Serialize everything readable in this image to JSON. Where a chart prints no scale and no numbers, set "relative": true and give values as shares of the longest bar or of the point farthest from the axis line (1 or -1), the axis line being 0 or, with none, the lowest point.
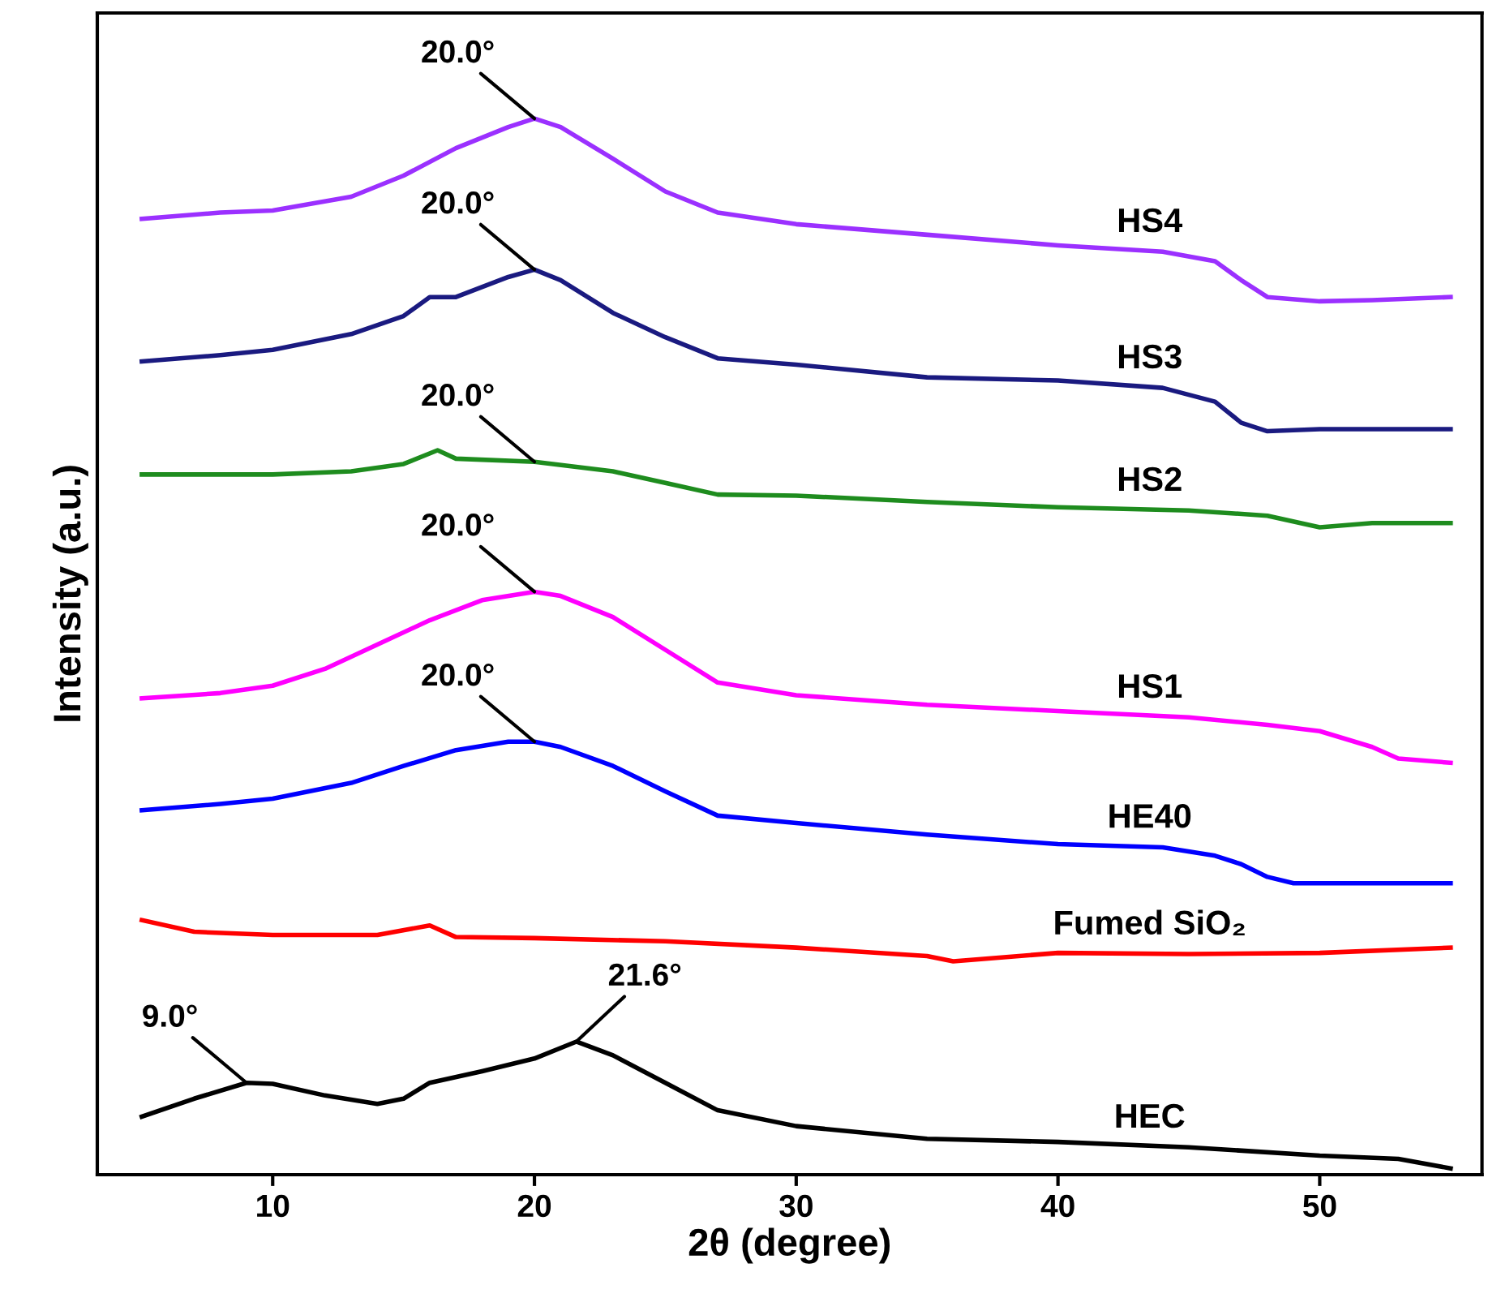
{
  "chart_data": {
    "type": "line",
    "relative": true,
    "xlabel": "2θ (degree)",
    "ylabel": "Intensity (a.u.)",
    "xlim": [
      3.3,
      56.2
    ],
    "xticks": [
      10,
      20,
      30,
      40,
      50
    ],
    "grid": false,
    "legend": false,
    "marker": "none",
    "line_style": "solid",
    "series": [
      {
        "name": "HS4",
        "color": "#9b30ff",
        "x": [
          5,
          8,
          10,
          13,
          15,
          17,
          19,
          20,
          21,
          23,
          25,
          27,
          30,
          35,
          40,
          44,
          46,
          47,
          48,
          50,
          52,
          55
        ],
        "values": [
          0.905,
          0.911,
          0.913,
          0.926,
          0.946,
          0.972,
          0.992,
          1.0,
          0.992,
          0.962,
          0.931,
          0.911,
          0.9,
          0.89,
          0.88,
          0.874,
          0.865,
          0.847,
          0.831,
          0.827,
          0.828,
          0.831
        ]
      },
      {
        "name": "HS3",
        "color": "#1a1a80",
        "x": [
          5,
          8,
          10,
          13,
          15,
          16,
          17,
          19,
          20,
          21,
          23,
          25,
          27,
          30,
          35,
          40,
          44,
          46,
          47,
          48,
          50,
          55
        ],
        "values": [
          0.77,
          0.776,
          0.781,
          0.796,
          0.813,
          0.831,
          0.831,
          0.85,
          0.857,
          0.847,
          0.816,
          0.793,
          0.773,
          0.767,
          0.755,
          0.752,
          0.745,
          0.732,
          0.712,
          0.704,
          0.706,
          0.706
        ]
      },
      {
        "name": "HS2",
        "color": "#1e8c1e",
        "x": [
          5,
          10,
          13,
          15,
          16.3,
          17,
          20,
          23,
          25,
          27,
          30,
          35,
          40,
          45,
          48,
          50,
          52,
          55
        ],
        "values": [
          0.663,
          0.663,
          0.666,
          0.673,
          0.686,
          0.678,
          0.675,
          0.666,
          0.655,
          0.644,
          0.643,
          0.637,
          0.632,
          0.629,
          0.624,
          0.613,
          0.617,
          0.617
        ]
      },
      {
        "name": "HS1",
        "color": "#ff00ff",
        "x": [
          5,
          8,
          10,
          12,
          14,
          16,
          18,
          20,
          21,
          23,
          25,
          27,
          30,
          35,
          40,
          45,
          48,
          50,
          52,
          53,
          55
        ],
        "values": [
          0.451,
          0.456,
          0.463,
          0.479,
          0.502,
          0.525,
          0.544,
          0.552,
          0.548,
          0.528,
          0.497,
          0.466,
          0.454,
          0.445,
          0.439,
          0.433,
          0.426,
          0.42,
          0.405,
          0.394,
          0.39
        ]
      },
      {
        "name": "HE40",
        "color": "#0000ff",
        "x": [
          5,
          8,
          10,
          13,
          15,
          17,
          19,
          20,
          21,
          23,
          25,
          27,
          30,
          35,
          40,
          44,
          46,
          47,
          48,
          49,
          50,
          55
        ],
        "values": [
          0.345,
          0.351,
          0.356,
          0.371,
          0.387,
          0.402,
          0.41,
          0.41,
          0.405,
          0.387,
          0.363,
          0.34,
          0.333,
          0.322,
          0.313,
          0.31,
          0.302,
          0.294,
          0.282,
          0.276,
          0.276,
          0.276
        ]
      },
      {
        "name": "Fumed SiO₂",
        "color": "#ff0000",
        "x": [
          5,
          7,
          10,
          14,
          16,
          17,
          20,
          25,
          30,
          35,
          36,
          40,
          45,
          50,
          55
        ],
        "values": [
          0.241,
          0.23,
          0.227,
          0.227,
          0.236,
          0.225,
          0.224,
          0.221,
          0.215,
          0.207,
          0.202,
          0.21,
          0.209,
          0.21,
          0.215
        ]
      },
      {
        "name": "HEC",
        "color": "#000000",
        "x": [
          5,
          7,
          9,
          10,
          12,
          14,
          15,
          16,
          18,
          20,
          21.6,
          23,
          25,
          27,
          30,
          35,
          40,
          45,
          50,
          53,
          55
        ],
        "values": [
          0.055,
          0.072,
          0.087,
          0.086,
          0.075,
          0.067,
          0.072,
          0.087,
          0.098,
          0.11,
          0.126,
          0.113,
          0.087,
          0.061,
          0.046,
          0.034,
          0.031,
          0.026,
          0.018,
          0.015,
          0.006
        ]
      }
    ],
    "annotations": [
      {
        "text": "20.0°",
        "x": 20,
        "y": 1.0
      },
      {
        "text": "20.0°",
        "x": 20,
        "y": 0.857
      },
      {
        "text": "20.0°",
        "x": 20,
        "y": 0.675
      },
      {
        "text": "20.0°",
        "x": 20,
        "y": 0.552
      },
      {
        "text": "20.0°",
        "x": 20,
        "y": 0.41
      },
      {
        "text": "9.0°",
        "x": 9,
        "y": 0.087
      },
      {
        "text": "21.6°",
        "x": 21.6,
        "y": 0.126
      }
    ]
  }
}
